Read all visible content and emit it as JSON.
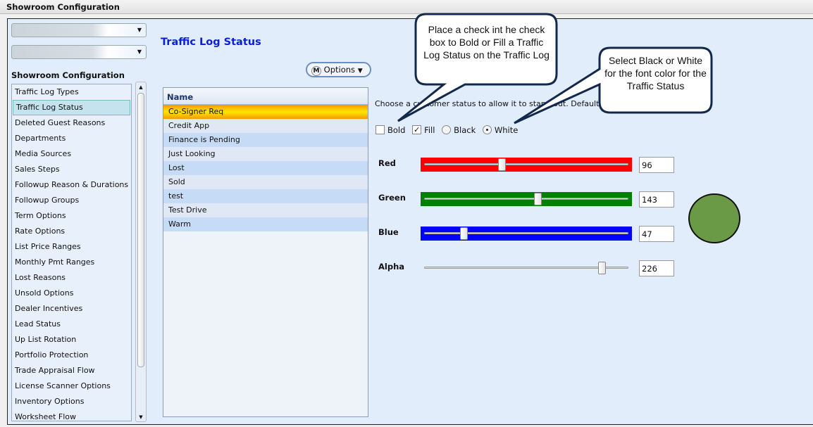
{
  "window": {
    "title": "Showroom Configuration"
  },
  "sidebar": {
    "title": "Showroom Configuration",
    "items": [
      {
        "label": "Traffic Log Types"
      },
      {
        "label": "Traffic Log Status",
        "selected": true
      },
      {
        "label": "Deleted Guest Reasons"
      },
      {
        "label": "Departments"
      },
      {
        "label": "Media Sources"
      },
      {
        "label": "Sales Steps"
      },
      {
        "label": "Followup Reason & Durations"
      },
      {
        "label": "Followup Groups"
      },
      {
        "label": "Term Options"
      },
      {
        "label": "Rate Options"
      },
      {
        "label": "List Price Ranges"
      },
      {
        "label": "Monthly Pmt Ranges"
      },
      {
        "label": "Lost Reasons"
      },
      {
        "label": "Unsold Options"
      },
      {
        "label": "Dealer Incentives"
      },
      {
        "label": "Lead Status"
      },
      {
        "label": "Up List Rotation"
      },
      {
        "label": "Portfolio Protection"
      },
      {
        "label": "Trade Appraisal Flow"
      },
      {
        "label": "License Scanner Options"
      },
      {
        "label": "Inventory Options"
      },
      {
        "label": "Worksheet Flow"
      }
    ]
  },
  "main": {
    "heading": "Traffic Log Status",
    "options_label": "Options",
    "grid": {
      "column": "Name",
      "rows": [
        "Co-Signer Req",
        "Credit App",
        "Finance is Pending",
        "Just Looking",
        "Lost",
        "Sold",
        "test",
        "Test Drive",
        "Warm"
      ]
    },
    "description": "Choose a customer status to allow it to stand out. Default",
    "bold": {
      "label": "Bold",
      "checked": false
    },
    "fill": {
      "label": "Fill",
      "checked": true
    },
    "font_color": {
      "options": [
        "Black",
        "White"
      ],
      "selected": "White"
    },
    "sliders": [
      {
        "label": "Red",
        "value": 96,
        "color": "#ff0000"
      },
      {
        "label": "Green",
        "value": 143,
        "color": "#008000"
      },
      {
        "label": "Blue",
        "value": 47,
        "color": "#0000ff"
      },
      {
        "label": "Alpha",
        "value": 226,
        "color": ""
      }
    ],
    "preview_color": "#6b9a47"
  },
  "callouts": [
    "Place a check int he check box to Bold or Fill a Traffic Log Status on the Traffic Log",
    "Select Black or White for the font color for the Traffic Status"
  ]
}
